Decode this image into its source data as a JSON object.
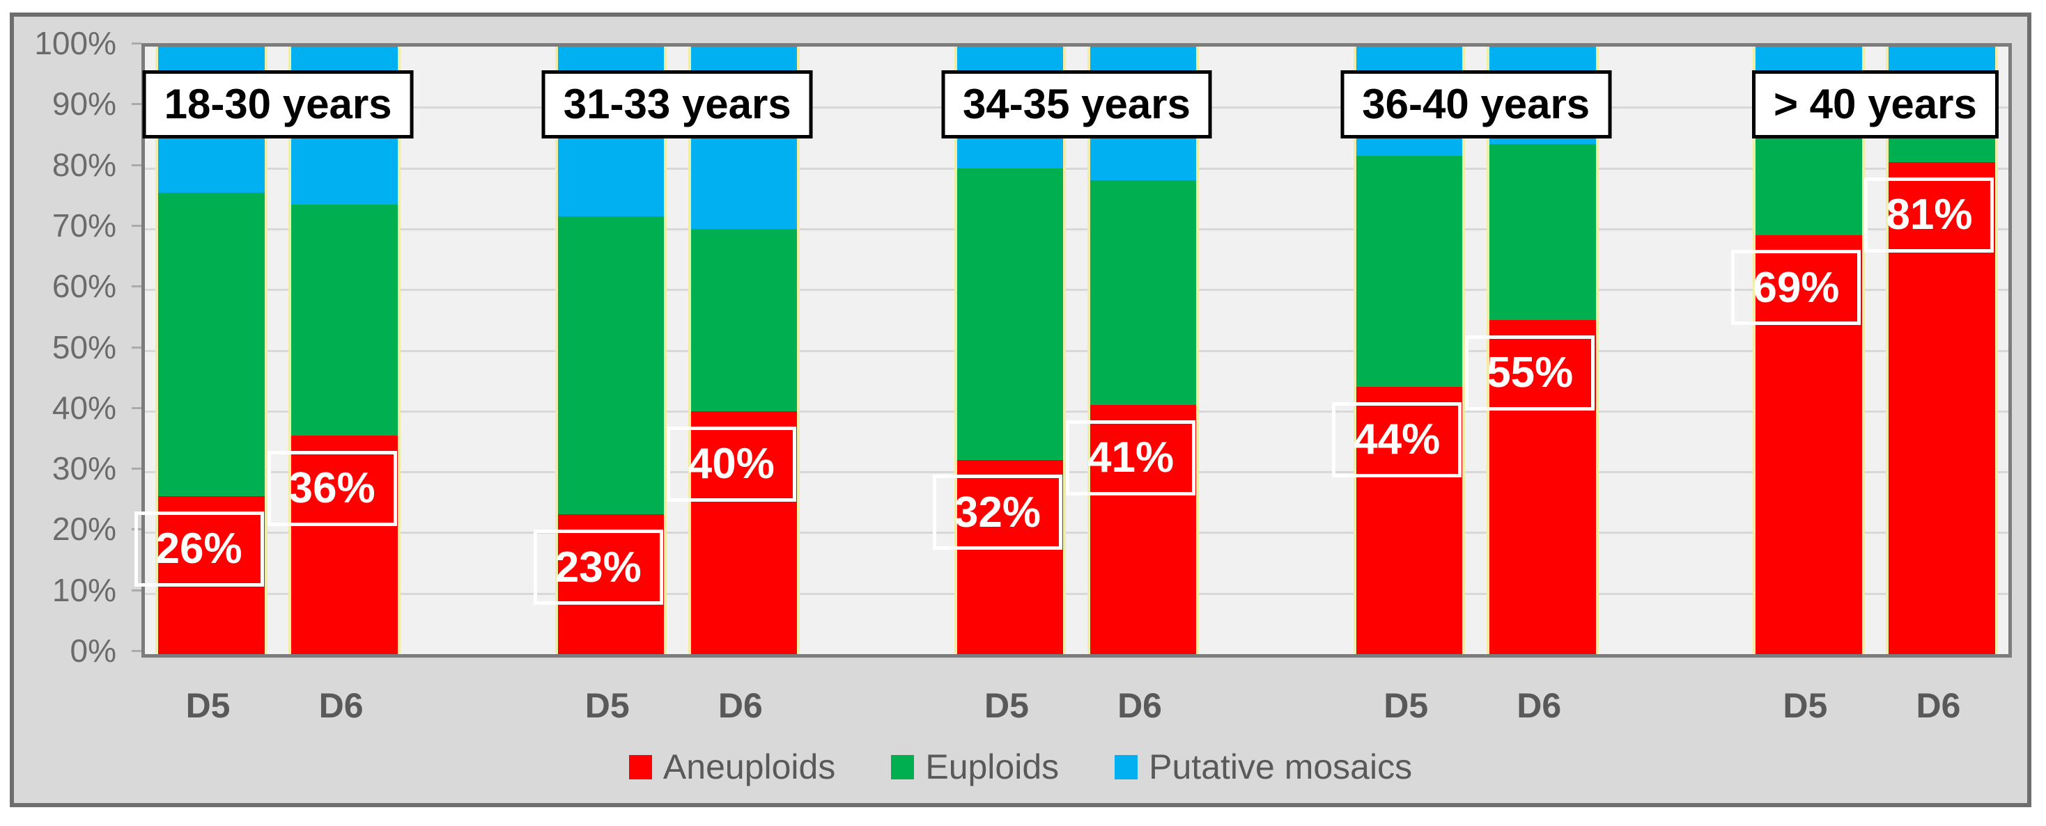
{
  "chart_data": {
    "type": "bar",
    "variant": "stacked-100-percent",
    "title": "",
    "xlabel": "",
    "ylabel": "",
    "ylim": [
      0,
      100
    ],
    "grid": true,
    "legend_position": "bottom",
    "y_ticks": [
      "0%",
      "10%",
      "20%",
      "30%",
      "40%",
      "50%",
      "60%",
      "70%",
      "80%",
      "90%",
      "100%"
    ],
    "series_order_bottom_to_top": [
      "Aneuploids",
      "Euploids",
      "Putative mosaics"
    ],
    "legend": [
      {
        "label": "Aneuploids",
        "color": "#FF0000"
      },
      {
        "label": "Euploids",
        "color": "#00B050"
      },
      {
        "label": "Putative mosaics",
        "color": "#00B0F0"
      }
    ],
    "groups": [
      {
        "label": "18-30 years",
        "bars": [
          {
            "day": "D5",
            "aneuploids": 26,
            "euploids": 50,
            "mosaics": 24,
            "data_label": "26%"
          },
          {
            "day": "D6",
            "aneuploids": 36,
            "euploids": 38,
            "mosaics": 26,
            "data_label": "36%"
          }
        ]
      },
      {
        "label": "31-33 years",
        "bars": [
          {
            "day": "D5",
            "aneuploids": 23,
            "euploids": 49,
            "mosaics": 28,
            "data_label": "23%"
          },
          {
            "day": "D6",
            "aneuploids": 40,
            "euploids": 30,
            "mosaics": 30,
            "data_label": "40%"
          }
        ]
      },
      {
        "label": "34-35 years",
        "bars": [
          {
            "day": "D5",
            "aneuploids": 32,
            "euploids": 48,
            "mosaics": 20,
            "data_label": "32%"
          },
          {
            "day": "D6",
            "aneuploids": 41,
            "euploids": 37,
            "mosaics": 22,
            "data_label": "41%"
          }
        ]
      },
      {
        "label": "36-40 years",
        "bars": [
          {
            "day": "D5",
            "aneuploids": 44,
            "euploids": 38,
            "mosaics": 18,
            "data_label": "44%"
          },
          {
            "day": "D6",
            "aneuploids": 55,
            "euploids": 29,
            "mosaics": 16,
            "data_label": "55%"
          }
        ]
      },
      {
        "label": "> 40 years",
        "bars": [
          {
            "day": "D5",
            "aneuploids": 69,
            "euploids": 22,
            "mosaics": 9,
            "data_label": "69%"
          },
          {
            "day": "D6",
            "aneuploids": 81,
            "euploids": 13,
            "mosaics": 6,
            "data_label": "81%"
          }
        ]
      }
    ]
  },
  "colors": {
    "aneuploids": "#FF0000",
    "euploids": "#00B050",
    "mosaics": "#00B0F0",
    "bar_edge": "#EFEDA6",
    "plot_bg": "#F1F1F1",
    "chart_bg": "#D9D9D9",
    "gridline": "#D8D8D8",
    "plot_border": "#7C7C7C",
    "frame_border": "#6E6E6E",
    "axis_text": "#6B6B6B",
    "x_axis_text": "#595959",
    "legend_text": "#595959",
    "group_label_text": "#000000",
    "data_label_text": "#FFFFFF"
  }
}
